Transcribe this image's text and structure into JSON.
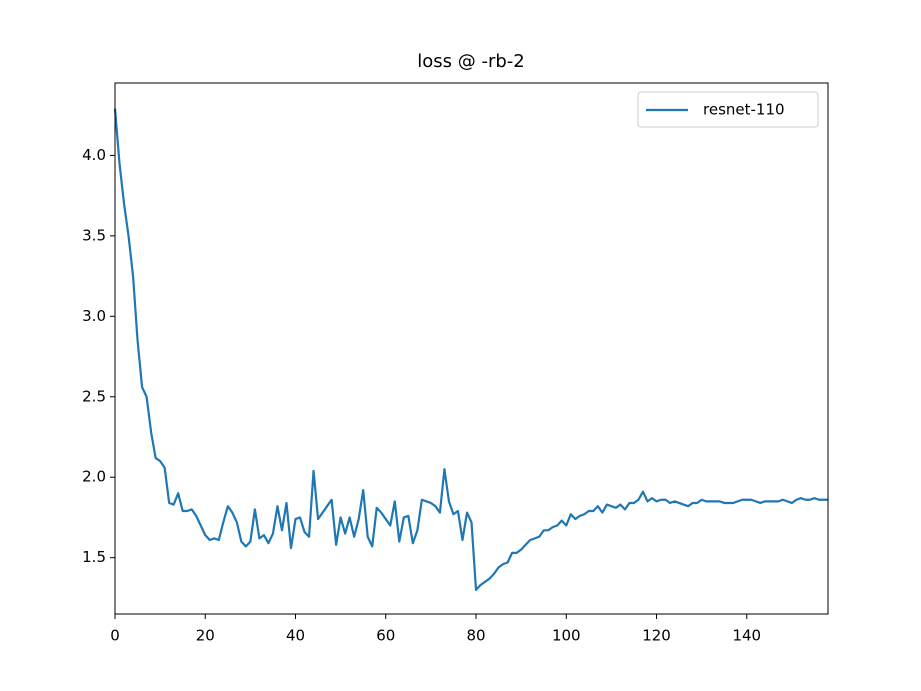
{
  "chart_data": {
    "type": "line",
    "title": "loss @ -rb-2",
    "x": [
      0,
      1,
      2,
      3,
      4,
      5,
      6,
      7,
      8,
      9,
      10,
      11,
      12,
      13,
      14,
      15,
      16,
      17,
      18,
      19,
      20,
      21,
      22,
      23,
      24,
      25,
      26,
      27,
      28,
      29,
      30,
      31,
      32,
      33,
      34,
      35,
      36,
      37,
      38,
      39,
      40,
      41,
      42,
      43,
      44,
      45,
      46,
      47,
      48,
      49,
      50,
      51,
      52,
      53,
      54,
      55,
      56,
      57,
      58,
      59,
      60,
      61,
      62,
      63,
      64,
      65,
      66,
      67,
      68,
      69,
      70,
      71,
      72,
      73,
      74,
      75,
      76,
      77,
      78,
      79,
      80,
      81,
      82,
      83,
      84,
      85,
      86,
      87,
      88,
      89,
      90,
      91,
      92,
      93,
      94,
      95,
      96,
      97,
      98,
      99,
      100,
      101,
      102,
      103,
      104,
      105,
      106,
      107,
      108,
      109,
      110,
      111,
      112,
      113,
      114,
      115,
      116,
      117,
      118,
      119,
      120,
      121,
      122,
      123,
      124,
      125,
      126,
      127,
      128,
      129,
      130,
      131,
      132,
      133,
      134,
      135,
      136,
      137,
      138,
      139,
      140,
      141,
      142,
      143,
      144,
      145,
      146,
      147,
      148,
      149,
      150,
      151,
      152,
      153,
      154,
      155,
      156,
      157,
      158
    ],
    "series": [
      {
        "name": "resnet-110",
        "color": "#1f77b4",
        "values": [
          4.29,
          3.95,
          3.7,
          3.5,
          3.25,
          2.85,
          2.56,
          2.5,
          2.28,
          2.12,
          2.1,
          2.06,
          1.84,
          1.83,
          1.9,
          1.79,
          1.79,
          1.8,
          1.76,
          1.7,
          1.64,
          1.61,
          1.62,
          1.61,
          1.72,
          1.82,
          1.78,
          1.72,
          1.6,
          1.57,
          1.6,
          1.8,
          1.62,
          1.64,
          1.59,
          1.65,
          1.82,
          1.67,
          1.84,
          1.56,
          1.74,
          1.75,
          1.66,
          1.63,
          2.04,
          1.74,
          1.78,
          1.82,
          1.86,
          1.58,
          1.75,
          1.65,
          1.75,
          1.63,
          1.74,
          1.92,
          1.63,
          1.57,
          1.81,
          1.78,
          1.74,
          1.7,
          1.85,
          1.6,
          1.75,
          1.76,
          1.59,
          1.67,
          1.86,
          1.85,
          1.84,
          1.82,
          1.78,
          2.05,
          1.85,
          1.77,
          1.79,
          1.61,
          1.78,
          1.72,
          1.3,
          1.33,
          1.35,
          1.37,
          1.4,
          1.44,
          1.46,
          1.47,
          1.53,
          1.53,
          1.55,
          1.58,
          1.61,
          1.62,
          1.63,
          1.67,
          1.67,
          1.69,
          1.7,
          1.73,
          1.7,
          1.77,
          1.74,
          1.76,
          1.77,
          1.79,
          1.79,
          1.82,
          1.78,
          1.83,
          1.82,
          1.81,
          1.83,
          1.8,
          1.84,
          1.84,
          1.86,
          1.91,
          1.85,
          1.87,
          1.85,
          1.86,
          1.86,
          1.84,
          1.85,
          1.84,
          1.83,
          1.82,
          1.84,
          1.84,
          1.86,
          1.85,
          1.85,
          1.85,
          1.85,
          1.84,
          1.84,
          1.84,
          1.85,
          1.86,
          1.86,
          1.86,
          1.85,
          1.84,
          1.85,
          1.85,
          1.85,
          1.85,
          1.86,
          1.85,
          1.84,
          1.86,
          1.87,
          1.86,
          1.86,
          1.87,
          1.86,
          1.86,
          1.86
        ]
      }
    ],
    "xlim": [
      0,
      158
    ],
    "ylim": [
      1.15,
      4.45
    ],
    "xticks": [
      0,
      20,
      40,
      60,
      80,
      100,
      120,
      140
    ],
    "yticks": [
      1.5,
      {
        "value": 2,
        "label": "2.0"
      },
      2.5,
      {
        "value": 3,
        "label": "3.0"
      },
      3.5,
      {
        "value": 4,
        "label": "4.0"
      }
    ],
    "legend": "upper right"
  }
}
